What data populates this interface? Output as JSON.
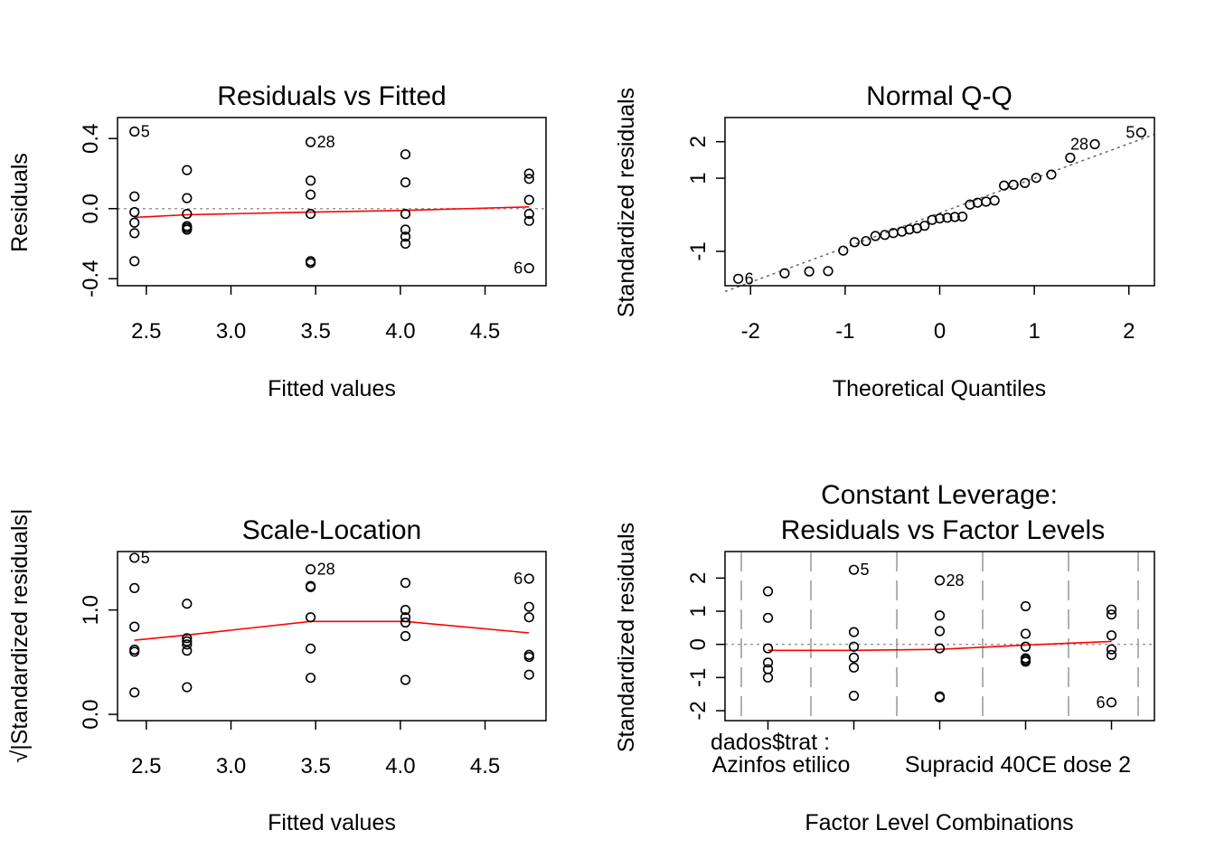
{
  "chart_data": [
    {
      "type": "scatter",
      "title": "Residuals vs Fitted",
      "xlabel": "Fitted values",
      "ylabel": "Residuals",
      "xlim": [
        2.33,
        4.86
      ],
      "ylim": [
        -0.44,
        0.52
      ],
      "xticks": [
        2.5,
        3.0,
        3.5,
        4.0,
        4.5
      ],
      "xtick_labels": [
        "2.5",
        "3.0",
        "3.5",
        "4.0",
        "4.5"
      ],
      "yticks": [
        -0.4,
        0.0,
        0.4
      ],
      "ytick_labels": [
        "-0.4",
        "0.0",
        "0.4"
      ],
      "reference_line_y": 0,
      "points": {
        "x": [
          2.43,
          2.43,
          2.43,
          2.43,
          2.43,
          2.43,
          2.74,
          2.74,
          2.74,
          2.74,
          2.74,
          2.74,
          3.47,
          3.47,
          3.47,
          3.47,
          3.47,
          3.47,
          4.03,
          4.03,
          4.03,
          4.03,
          4.03,
          4.03,
          4.76,
          4.76,
          4.76,
          4.76,
          4.76,
          4.76
        ],
        "y": [
          0.44,
          0.07,
          -0.02,
          -0.08,
          -0.14,
          -0.3,
          0.22,
          0.06,
          -0.03,
          -0.1,
          -0.11,
          -0.12,
          0.38,
          0.16,
          0.08,
          -0.03,
          -0.3,
          -0.31,
          0.31,
          0.15,
          -0.03,
          -0.12,
          -0.16,
          -0.2,
          0.2,
          0.17,
          0.05,
          -0.03,
          -0.07,
          -0.34
        ]
      },
      "smooth": {
        "x": [
          2.43,
          2.74,
          3.47,
          4.03,
          4.76
        ],
        "y": [
          -0.05,
          -0.035,
          -0.02,
          -0.01,
          0.01
        ]
      },
      "annotations": [
        {
          "label": "5",
          "x": 2.43,
          "y": 0.44,
          "side": "right"
        },
        {
          "label": "28",
          "x": 3.47,
          "y": 0.38,
          "side": "right"
        },
        {
          "label": "6",
          "x": 4.76,
          "y": -0.34,
          "side": "left"
        }
      ]
    },
    {
      "type": "scatter",
      "title": "Normal Q-Q",
      "xlabel": "Theoretical Quantiles",
      "ylabel": "Standardized residuals",
      "xlim": [
        -2.27,
        2.27
      ],
      "ylim": [
        -1.94,
        2.66
      ],
      "xticks": [
        -2,
        -1,
        0,
        1,
        2
      ],
      "xtick_labels": [
        "-2",
        "-1",
        "0",
        "1",
        "2"
      ],
      "yticks": [
        -1,
        1,
        2
      ],
      "ytick_labels": [
        "-1",
        "1",
        "2"
      ],
      "reference_line": [
        [
          -2.27,
          -2.1
        ],
        [
          2.27,
          2.2
        ]
      ],
      "points": {
        "x": [
          -2.13,
          -1.64,
          -1.38,
          -1.18,
          -1.02,
          -0.9,
          -0.78,
          -0.68,
          -0.58,
          -0.49,
          -0.4,
          -0.32,
          -0.24,
          -0.16,
          -0.08,
          0.0,
          0.08,
          0.16,
          0.24,
          0.32,
          0.4,
          0.49,
          0.58,
          0.68,
          0.78,
          0.9,
          1.02,
          1.18,
          1.38,
          1.64,
          2.13
        ],
        "y": [
          -1.75,
          -1.6,
          -1.55,
          -1.54,
          -0.98,
          -0.75,
          -0.72,
          -0.58,
          -0.55,
          -0.5,
          -0.46,
          -0.4,
          -0.37,
          -0.3,
          -0.14,
          -0.1,
          -0.08,
          -0.06,
          -0.05,
          0.28,
          0.33,
          0.36,
          0.39,
          0.8,
          0.82,
          0.87,
          1.01,
          1.1,
          1.56,
          1.93,
          2.25
        ]
      },
      "annotations": [
        {
          "label": "6",
          "x": -2.13,
          "y": -1.75,
          "side": "right"
        },
        {
          "label": "28",
          "x": 1.64,
          "y": 1.93,
          "side": "left"
        },
        {
          "label": "5",
          "x": 2.13,
          "y": 2.25,
          "side": "left"
        }
      ]
    },
    {
      "type": "scatter",
      "title": "Scale-Location",
      "xlabel": "Fitted values",
      "ylabel": "√|Standardized residuals|",
      "xlim": [
        2.33,
        4.86
      ],
      "ylim": [
        -0.06,
        1.56
      ],
      "xticks": [
        2.5,
        3.0,
        3.5,
        4.0,
        4.5
      ],
      "xtick_labels": [
        "2.5",
        "3.0",
        "3.5",
        "4.0",
        "4.5"
      ],
      "yticks": [
        0.0,
        1.0
      ],
      "ytick_labels": [
        "0.0",
        "1.0"
      ],
      "points": {
        "x": [
          2.43,
          2.43,
          2.43,
          2.43,
          2.43,
          2.43,
          2.74,
          2.74,
          2.74,
          2.74,
          2.74,
          2.74,
          3.47,
          3.47,
          3.47,
          3.47,
          3.47,
          3.47,
          4.03,
          4.03,
          4.03,
          4.03,
          4.03,
          4.03,
          4.76,
          4.76,
          4.76,
          4.76,
          4.76,
          4.76
        ],
        "y": [
          1.5,
          1.21,
          0.84,
          0.62,
          0.6,
          0.21,
          1.06,
          0.73,
          0.7,
          0.67,
          0.61,
          0.26,
          1.39,
          1.23,
          1.22,
          0.93,
          0.63,
          0.35,
          1.26,
          1.0,
          0.93,
          0.88,
          0.75,
          0.33,
          1.3,
          1.03,
          0.93,
          0.57,
          0.55,
          0.38
        ]
      },
      "smooth": {
        "x": [
          2.43,
          2.74,
          3.47,
          4.03,
          4.76
        ],
        "y": [
          0.71,
          0.76,
          0.89,
          0.89,
          0.78
        ]
      },
      "annotations": [
        {
          "label": "5",
          "x": 2.43,
          "y": 1.5,
          "side": "right"
        },
        {
          "label": "28",
          "x": 3.47,
          "y": 1.39,
          "side": "right"
        },
        {
          "label": "6",
          "x": 4.76,
          "y": 1.3,
          "side": "left"
        }
      ]
    },
    {
      "type": "scatter",
      "title": [
        "Constant Leverage:",
        "Residuals vs Factor Levels"
      ],
      "xlabel": "Factor Level Combinations",
      "ylabel": "Standardized residuals",
      "xlim": [
        0.5,
        5.5
      ],
      "ylim": [
        -2.3,
        2.8
      ],
      "xticks": [
        1,
        2,
        3,
        4,
        5
      ],
      "yticks": [
        -2,
        -1,
        0,
        1,
        2
      ],
      "ytick_labels": [
        "-2",
        "-1",
        "0",
        "1",
        "2"
      ],
      "factor_label": "dados$trat :",
      "level_labels": [
        {
          "text": "Azinfos etilico",
          "level": 1
        },
        {
          "text": "Supracid 40CE dose 2",
          "level": 5
        }
      ],
      "separators": [
        1.5,
        2.5,
        3.5,
        4.5
      ],
      "reference_line_y": 0,
      "points": {
        "x": [
          1,
          1,
          1,
          1,
          1,
          1,
          2,
          2,
          2,
          2,
          2,
          2,
          3,
          3,
          3,
          3,
          3,
          3,
          4,
          4,
          4,
          4,
          4,
          4,
          5,
          5,
          5,
          5,
          5,
          5
        ],
        "y": [
          1.6,
          0.8,
          -0.12,
          -0.55,
          -0.75,
          -1.0,
          2.25,
          0.37,
          -0.07,
          -0.4,
          -0.7,
          -1.55,
          1.93,
          0.87,
          0.4,
          -0.12,
          -1.57,
          -1.6,
          1.15,
          0.32,
          -0.07,
          -0.42,
          -0.47,
          -0.52,
          1.05,
          0.9,
          0.27,
          -0.15,
          -0.32,
          -1.75
        ]
      },
      "smooth": {
        "x": [
          1,
          2,
          3,
          4,
          5
        ],
        "y": [
          -0.18,
          -0.18,
          -0.15,
          -0.02,
          0.09
        ]
      },
      "annotations": [
        {
          "label": "5",
          "x": 2,
          "y": 2.25,
          "side": "right"
        },
        {
          "label": "28",
          "x": 3,
          "y": 1.93,
          "side": "right"
        },
        {
          "label": "6",
          "x": 5,
          "y": -1.75,
          "side": "left"
        }
      ]
    }
  ]
}
